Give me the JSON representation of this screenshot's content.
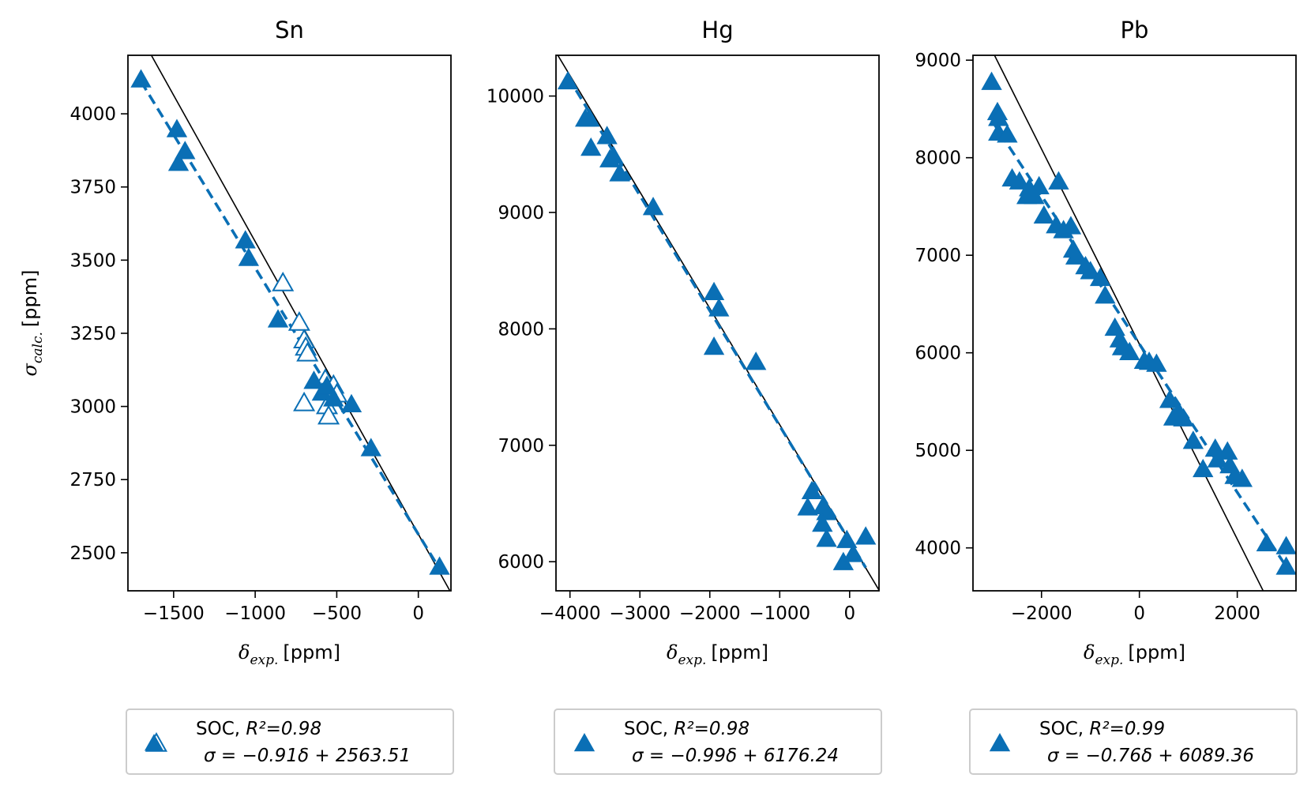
{
  "figure": {
    "accent_color": "#1f77b4",
    "marker_color": "#0a6fb5"
  },
  "chart_data": [
    {
      "type": "scatter",
      "title": "Sn",
      "xlabel_symbol": "δ",
      "xlabel_sub": "exp.",
      "xlabel_unit": "[ppm]",
      "ylabel_symbol": "σ",
      "ylabel_sub": "calc.",
      "ylabel_unit": "[ppm]",
      "xlim": [
        -1780,
        200
      ],
      "ylim": [
        2370,
        4200
      ],
      "xticks": [
        -1500,
        -1000,
        -500,
        0
      ],
      "xtick_labels": [
        "−1500",
        "−1000",
        "−500",
        "0"
      ],
      "yticks": [
        2500,
        2750,
        3000,
        3250,
        3500,
        3750,
        4000
      ],
      "ytick_labels": [
        "2500",
        "2750",
        "3000",
        "3250",
        "3500",
        "3750",
        "4000"
      ],
      "identity_line": {
        "slope": -1,
        "intercept": 2563.51
      },
      "fit": {
        "slope": -0.91,
        "intercept": 2563.51
      },
      "filled_points": [
        [
          -1700,
          4115
        ],
        [
          -1480,
          3945
        ],
        [
          -1470,
          3830
        ],
        [
          -1430,
          3870
        ],
        [
          -1060,
          3565
        ],
        [
          -1040,
          3505
        ],
        [
          -860,
          3295
        ],
        [
          -640,
          3085
        ],
        [
          -590,
          3045
        ],
        [
          -560,
          3065
        ],
        [
          -520,
          3025
        ],
        [
          -410,
          3005
        ],
        [
          -290,
          2855
        ],
        [
          130,
          2450
        ]
      ],
      "open_points": [
        [
          -830,
          3420
        ],
        [
          -730,
          3285
        ],
        [
          -700,
          3225
        ],
        [
          -690,
          3200
        ],
        [
          -680,
          3180
        ],
        [
          -700,
          3010
        ],
        [
          -570,
          3090
        ],
        [
          -560,
          3065
        ],
        [
          -540,
          3050
        ],
        [
          -560,
          3000
        ],
        [
          -550,
          2965
        ],
        [
          -520,
          3070
        ],
        [
          -500,
          3040
        ]
      ],
      "legend": {
        "label_prefix": "SOC, ",
        "r2_text": "R²=0.98",
        "equation": "σ = −0.91δ + 2563.51"
      }
    },
    {
      "type": "scatter",
      "title": "Hg",
      "xlabel_symbol": "δ",
      "xlabel_sub": "exp.",
      "xlabel_unit": "[ppm]",
      "xlim": [
        -4200,
        420
      ],
      "ylim": [
        5750,
        10350
      ],
      "xticks": [
        -4000,
        -3000,
        -2000,
        -1000,
        0
      ],
      "xtick_labels": [
        "−4000",
        "−3000",
        "−2000",
        "−1000",
        "0"
      ],
      "yticks": [
        6000,
        7000,
        8000,
        9000,
        10000
      ],
      "ytick_labels": [
        "6000",
        "7000",
        "8000",
        "9000",
        "10000"
      ],
      "identity_line": {
        "slope": -1,
        "intercept": 6176.24
      },
      "fit": {
        "slope": -0.99,
        "intercept": 6176.24
      },
      "filled_points": [
        [
          -4030,
          10120
        ],
        [
          -3780,
          9800
        ],
        [
          -3720,
          9800
        ],
        [
          -3700,
          9550
        ],
        [
          -3470,
          9650
        ],
        [
          -3430,
          9450
        ],
        [
          -3380,
          9480
        ],
        [
          -3290,
          9330
        ],
        [
          -2810,
          9040
        ],
        [
          -1940,
          8310
        ],
        [
          -1870,
          8170
        ],
        [
          -1940,
          7840
        ],
        [
          -1340,
          7710
        ],
        [
          -540,
          6600
        ],
        [
          -600,
          6460
        ],
        [
          -380,
          6470
        ],
        [
          -330,
          6420
        ],
        [
          -390,
          6320
        ],
        [
          -330,
          6190
        ],
        [
          -90,
          5990
        ],
        [
          -40,
          6180
        ],
        [
          50,
          6060
        ],
        [
          230,
          6210
        ]
      ],
      "legend": {
        "label_prefix": "SOC, ",
        "r2_text": "R²=0.98",
        "equation": "σ = −0.99δ + 6176.24"
      }
    },
    {
      "type": "scatter",
      "title": "Pb",
      "xlabel_symbol": "δ",
      "xlabel_sub": "exp.",
      "xlabel_unit": "[ppm]",
      "xlim": [
        -3400,
        3200
      ],
      "ylim": [
        3560,
        9050
      ],
      "xticks": [
        -2000,
        0,
        2000
      ],
      "xtick_labels": [
        "−2000",
        "0",
        "2000"
      ],
      "yticks": [
        4000,
        5000,
        6000,
        7000,
        8000,
        9000
      ],
      "ytick_labels": [
        "4000",
        "5000",
        "6000",
        "7000",
        "8000",
        "9000"
      ],
      "identity_line": {
        "slope": -1,
        "intercept": 6089.36
      },
      "fit": {
        "slope": -0.76,
        "intercept": 6089.36
      },
      "filled_points": [
        [
          -3020,
          8770
        ],
        [
          -2900,
          8460
        ],
        [
          -2880,
          8400
        ],
        [
          -2880,
          8250
        ],
        [
          -2700,
          8230
        ],
        [
          -2600,
          7780
        ],
        [
          -2450,
          7750
        ],
        [
          -2300,
          7600
        ],
        [
          -2250,
          7680
        ],
        [
          -2150,
          7600
        ],
        [
          -2050,
          7700
        ],
        [
          -1950,
          7400
        ],
        [
          -1650,
          7750
        ],
        [
          -1700,
          7300
        ],
        [
          -1550,
          7250
        ],
        [
          -1400,
          7290
        ],
        [
          -1350,
          7050
        ],
        [
          -1300,
          6980
        ],
        [
          -1100,
          6880
        ],
        [
          -1000,
          6830
        ],
        [
          -800,
          6760
        ],
        [
          -700,
          6580
        ],
        [
          -500,
          6250
        ],
        [
          -400,
          6130
        ],
        [
          -350,
          6050
        ],
        [
          -200,
          6000
        ],
        [
          100,
          5910
        ],
        [
          200,
          5900
        ],
        [
          350,
          5880
        ],
        [
          620,
          5510
        ],
        [
          800,
          5390
        ],
        [
          700,
          5330
        ],
        [
          900,
          5320
        ],
        [
          1100,
          5090
        ],
        [
          1300,
          4800
        ],
        [
          1550,
          5010
        ],
        [
          1600,
          4900
        ],
        [
          1800,
          4980
        ],
        [
          1850,
          4840
        ],
        [
          1950,
          4730
        ],
        [
          2100,
          4700
        ],
        [
          2600,
          4040
        ],
        [
          3000,
          4010
        ],
        [
          3000,
          3800
        ]
      ],
      "legend": {
        "label_prefix": "SOC, ",
        "r2_text": "R²=0.99",
        "equation": "σ = −0.76δ + 6089.36"
      }
    }
  ]
}
